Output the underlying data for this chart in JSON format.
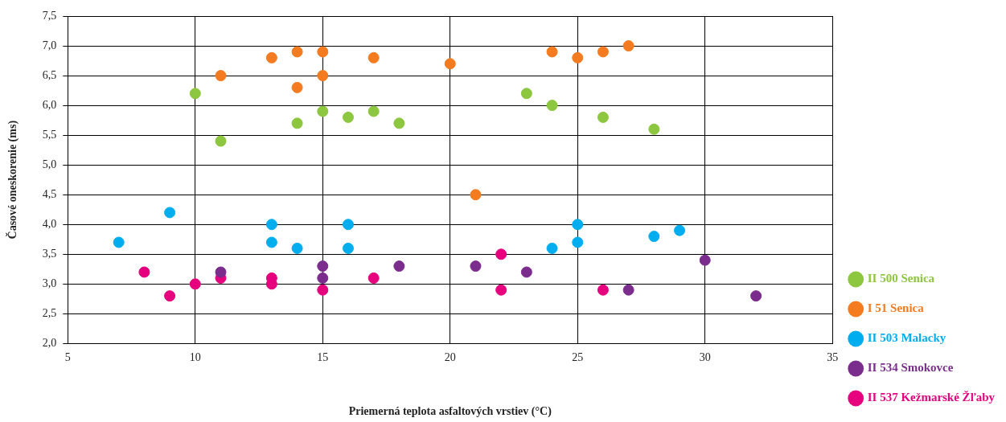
{
  "chart_data": {
    "type": "scatter",
    "xlabel": "Priemerná teplota asfaltových vrstiev (°C)",
    "ylabel": "Časové oneskorenie (ms)",
    "xlim": [
      5,
      35
    ],
    "xticks": [
      5,
      10,
      15,
      20,
      25,
      30,
      35
    ],
    "ylim": [
      2,
      7.5
    ],
    "yticks": [
      {
        "value": 2,
        "label": "2,0"
      },
      {
        "value": 2.5,
        "label": "2,5"
      },
      {
        "value": 3,
        "label": "3,0"
      },
      {
        "value": 3.5,
        "label": "3,5"
      },
      {
        "value": 4,
        "label": "4,0"
      },
      {
        "value": 4.5,
        "label": "4,5"
      },
      {
        "value": 5,
        "label": "5,0"
      },
      {
        "value": 5.5,
        "label": "5,5"
      },
      {
        "value": 6,
        "label": "6,0"
      },
      {
        "value": 6.5,
        "label": "6,5"
      },
      {
        "value": 7,
        "label": "7,0"
      },
      {
        "value": 7.5,
        "label": "7,5"
      }
    ],
    "grid": true,
    "legend": "right",
    "marker": "circle",
    "series": [
      {
        "name": "II 500 Senica",
        "color": "#8dc63f",
        "x": [
          10,
          11,
          14,
          15,
          16,
          17,
          18,
          23,
          24,
          26,
          28
        ],
        "values": [
          6.2,
          5.4,
          5.7,
          5.9,
          5.8,
          5.9,
          5.7,
          6.2,
          6.0,
          5.8,
          5.6
        ]
      },
      {
        "name": "I 51 Senica",
        "color": "#f47b20",
        "x": [
          11,
          13,
          14,
          14,
          15,
          15,
          17,
          20,
          21,
          24,
          25,
          26,
          27
        ],
        "values": [
          6.5,
          6.8,
          6.9,
          6.3,
          6.9,
          6.5,
          6.8,
          6.7,
          4.5,
          6.9,
          6.8,
          6.9,
          7.0
        ]
      },
      {
        "name": "II 503 Malacky",
        "color": "#00aeef",
        "x": [
          7,
          9,
          13,
          13,
          14,
          16,
          16,
          24,
          25,
          25,
          28,
          29
        ],
        "values": [
          3.7,
          4.2,
          4.0,
          3.7,
          3.6,
          4.0,
          3.6,
          3.6,
          4.0,
          3.7,
          3.8,
          3.9
        ]
      },
      {
        "name": "II 534 Smokovce",
        "color": "#7b2d8e",
        "x": [
          11,
          15,
          15,
          18,
          21,
          23,
          27,
          30,
          32
        ],
        "values": [
          3.2,
          3.3,
          3.1,
          3.3,
          3.3,
          3.2,
          2.9,
          3.4,
          2.8
        ]
      },
      {
        "name": "II 537 Kežmarské Žľaby",
        "color": "#e6007e",
        "x": [
          8,
          9,
          10,
          11,
          13,
          13,
          15,
          17,
          22,
          22,
          26
        ],
        "values": [
          3.2,
          2.8,
          3.0,
          3.1,
          3.1,
          3.0,
          2.9,
          3.1,
          3.5,
          2.9,
          2.9
        ]
      }
    ]
  }
}
